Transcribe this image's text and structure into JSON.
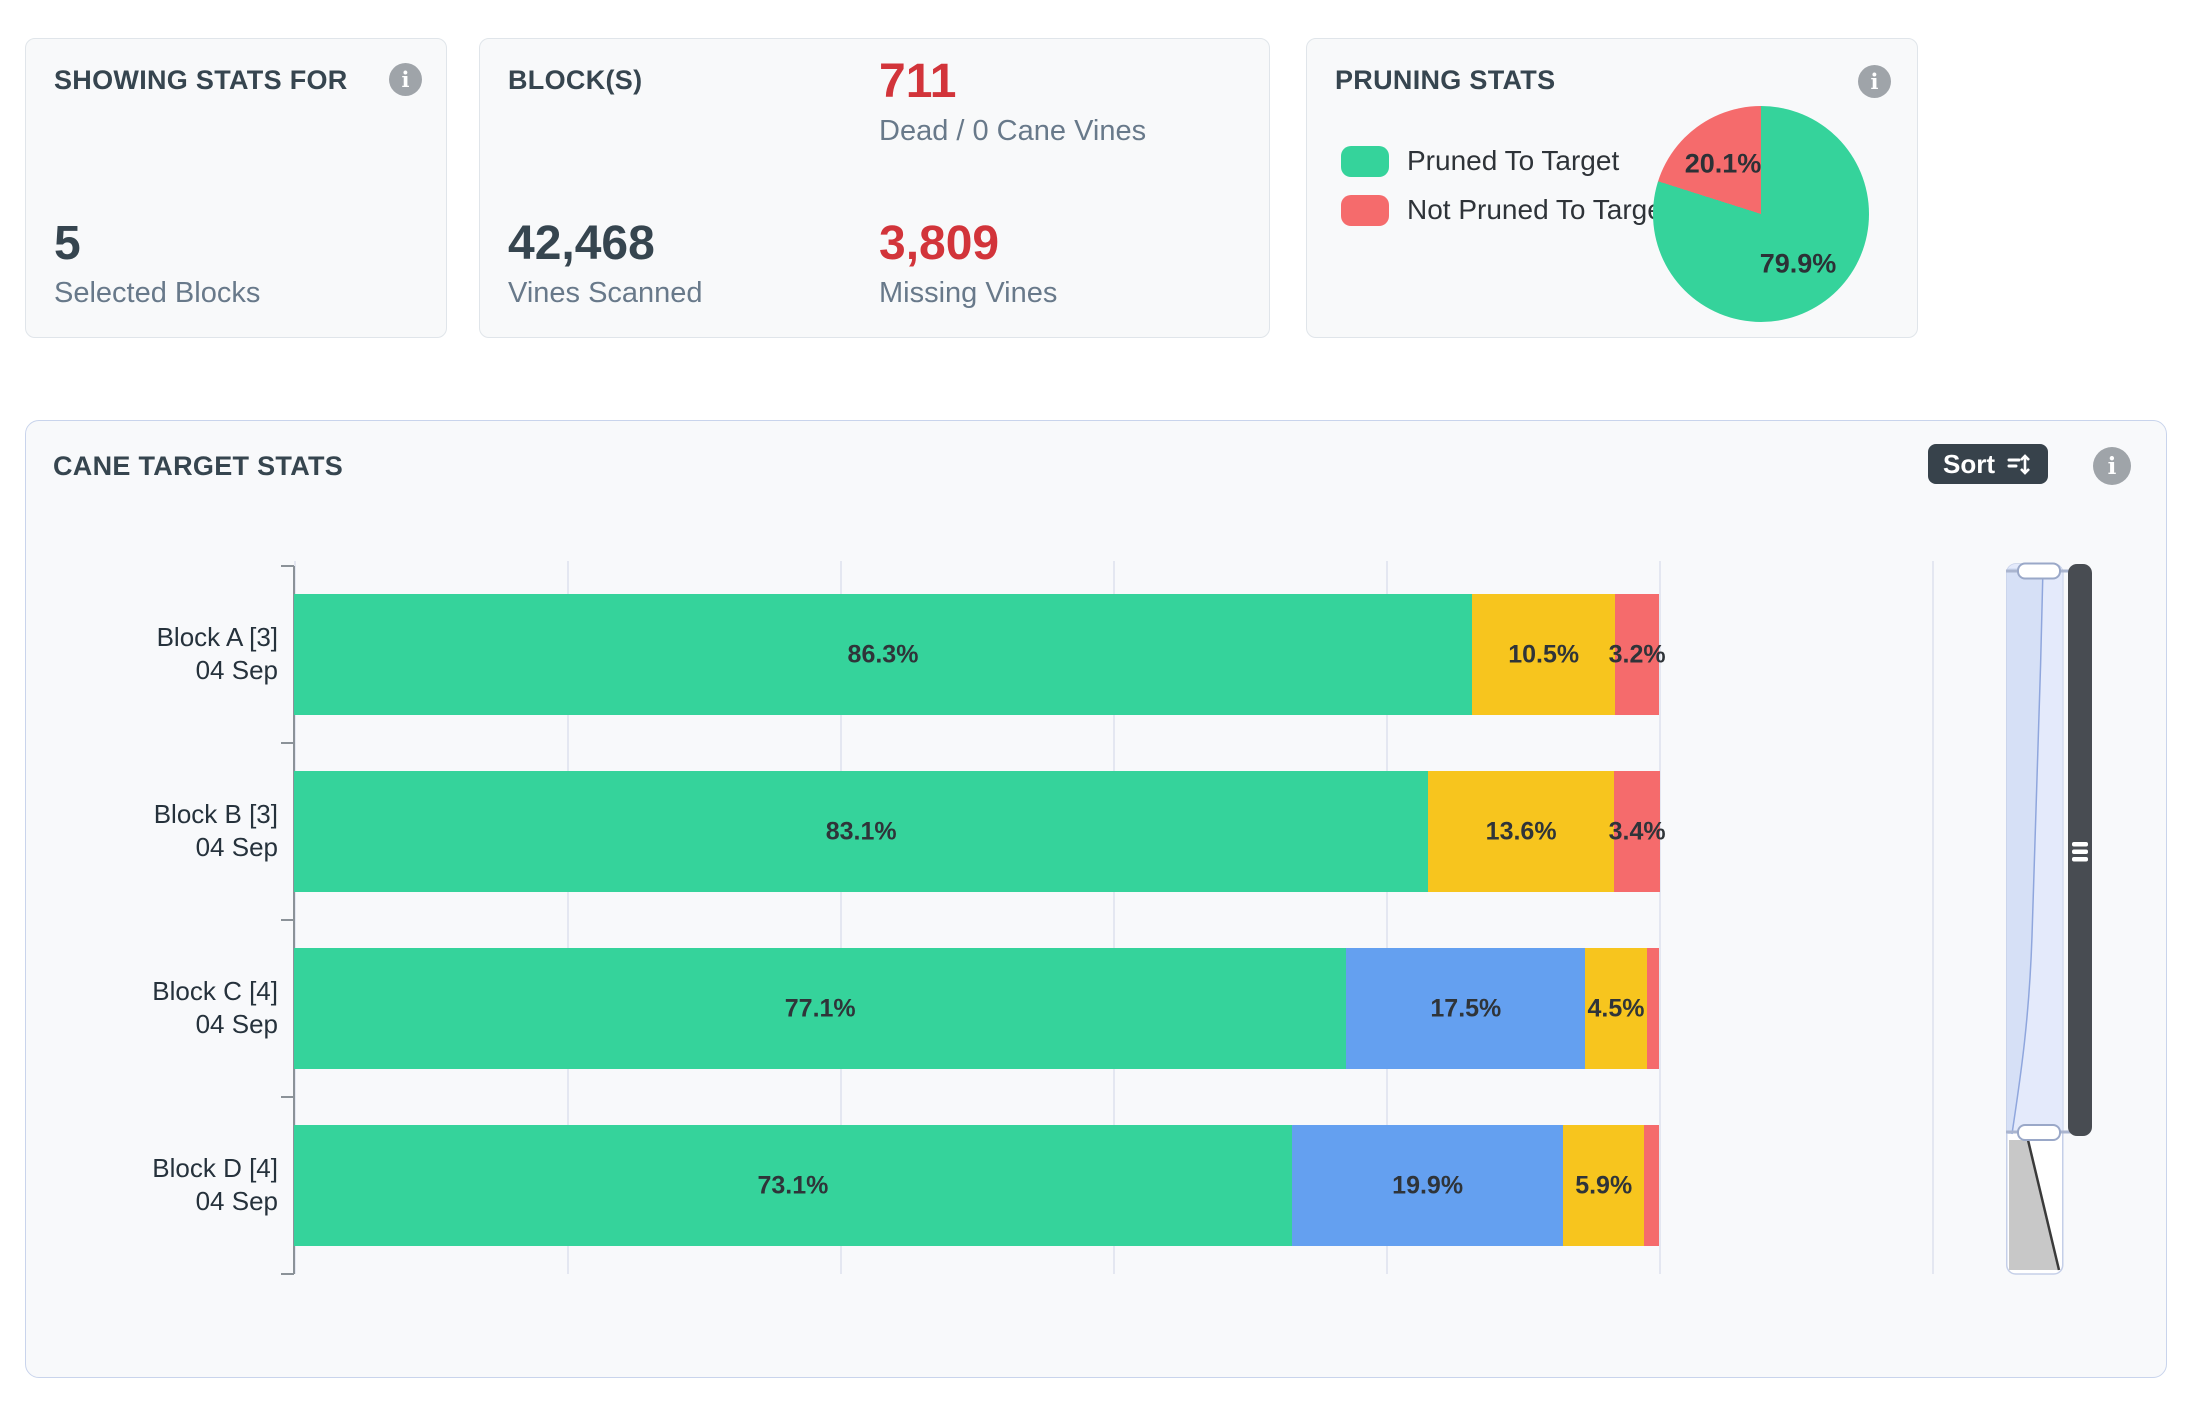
{
  "icons": {
    "info_glyph": "i"
  },
  "colors": {
    "card_bg": "#f8f9fa",
    "stat_number": "#36454f",
    "stat_label": "#68798a",
    "accent_red": "#d2343a",
    "green": "#35d39b",
    "yellow": "#f7c51e",
    "red": "#f56b6c",
    "blue": "#64a0f0",
    "dark_button": "#37424b"
  },
  "cards": {
    "showing_stats": {
      "title": "SHOWING STATS FOR",
      "value": "5",
      "label": "Selected Blocks"
    },
    "blocks": {
      "title": "BLOCK(S)",
      "dead": {
        "value": "711",
        "label": "Dead / 0 Cane Vines"
      },
      "scanned": {
        "value": "42,468",
        "label": "Vines Scanned"
      },
      "missing": {
        "value": "3,809",
        "label": "Missing Vines"
      }
    },
    "pruning": {
      "title": "PRUNING STATS"
    }
  },
  "cane_card": {
    "title": "CANE TARGET STATS",
    "sort_label": "Sort"
  },
  "chart_data": [
    {
      "type": "pie",
      "title": "PRUNING STATS",
      "labels": [
        "Pruned To Target",
        "Not Pruned To Target"
      ],
      "values": [
        79.9,
        20.1
      ],
      "colors": [
        "#35d39b",
        "#f56b6c"
      ],
      "value_suffix": "%",
      "legend_position": "left",
      "start_angle_deg": 0
    },
    {
      "type": "bar",
      "title": "CANE TARGET STATS",
      "orientation": "horizontal",
      "stacked": true,
      "categories": [
        "Block A [3]",
        "Block B [3]",
        "Block C [4]",
        "Block D [4]"
      ],
      "category_dates": [
        "04 Sep",
        "04 Sep",
        "04 Sep",
        "04 Sep"
      ],
      "x_range": [
        0,
        100
      ],
      "x_unit": "%",
      "grid": true,
      "gridlines_pct": [
        0,
        20,
        40,
        60,
        80,
        100,
        120
      ],
      "series": [
        {
          "name": "green",
          "color": "#35d39b",
          "values": [
            86.3,
            83.1,
            77.1,
            73.1
          ]
        },
        {
          "name": "blue",
          "color": "#64a0f0",
          "values": [
            0,
            0,
            17.5,
            19.9
          ]
        },
        {
          "name": "yellow",
          "color": "#f7c51e",
          "values": [
            10.5,
            13.6,
            4.5,
            5.9
          ]
        },
        {
          "name": "red",
          "color": "#f56b6c",
          "values": [
            3.2,
            3.4,
            0.9,
            1.1
          ]
        }
      ],
      "label_suffix": "%",
      "min_label_value": 2
    }
  ]
}
